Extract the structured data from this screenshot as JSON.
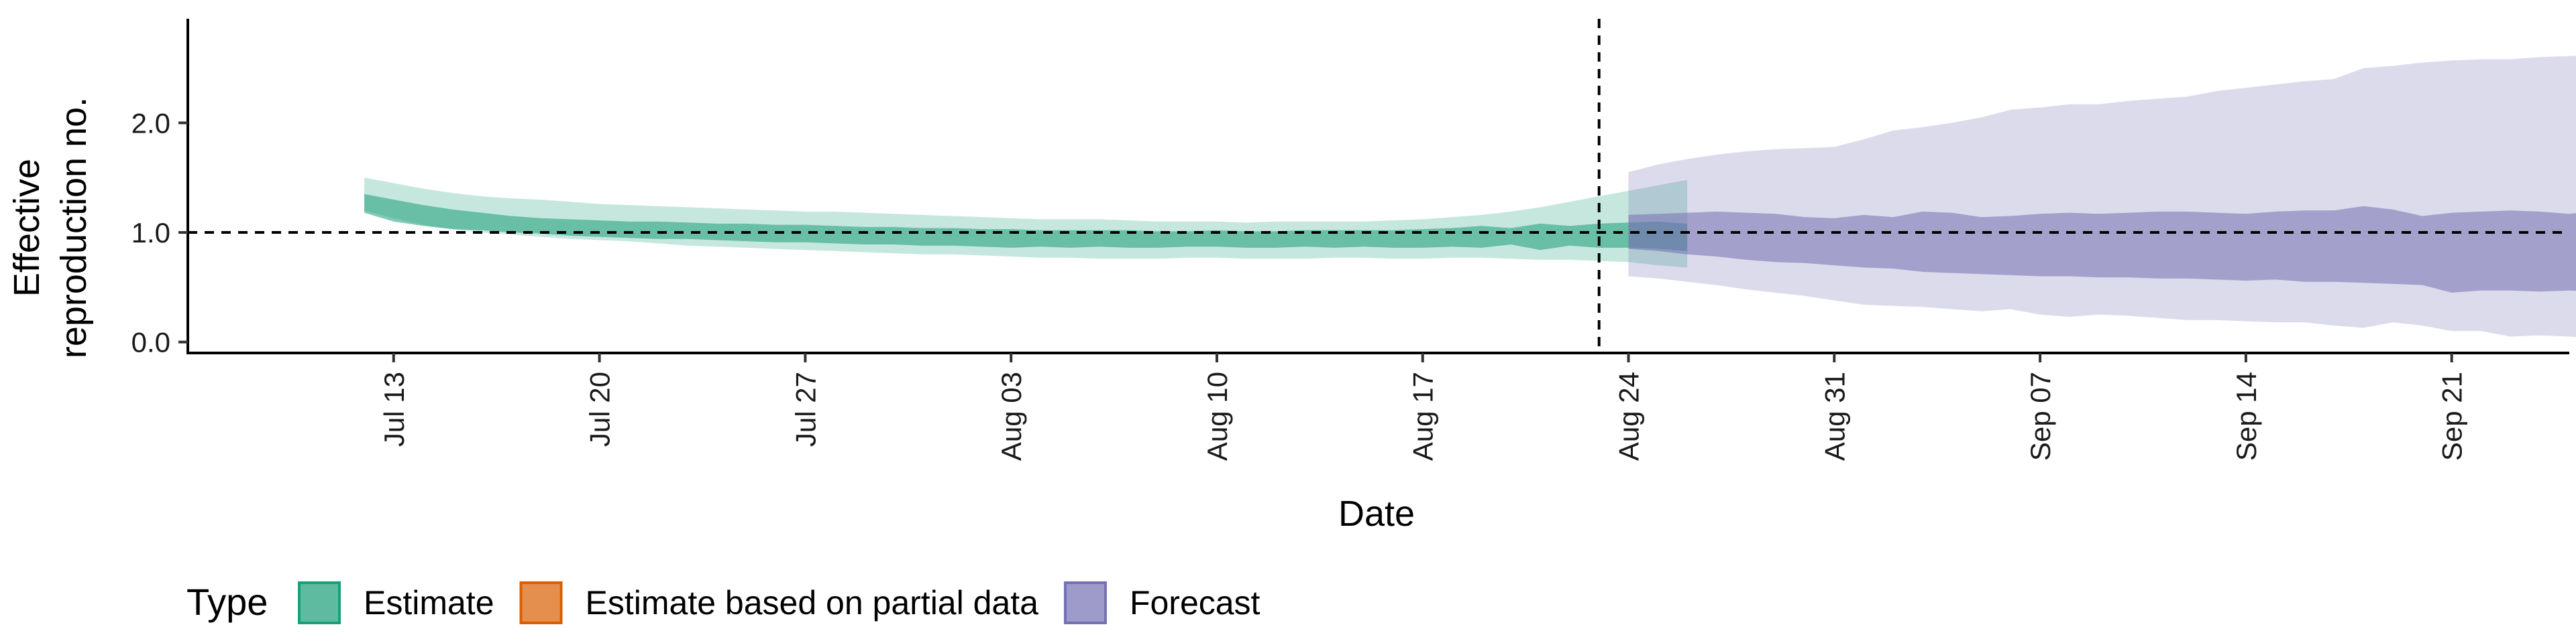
{
  "chart_data": {
    "type": "area",
    "xlabel": "Date",
    "ylabel_lines": [
      "Effective",
      "reproduction no."
    ],
    "ylim": [
      -0.1,
      2.95
    ],
    "yticks": [
      0.0,
      1.0,
      2.0
    ],
    "ytick_labels": [
      "0.0",
      "1.0",
      "2.0"
    ],
    "xlim": [
      "2020-07-06",
      "2020-09-25"
    ],
    "xticks": [
      "2020-07-13",
      "2020-07-20",
      "2020-07-27",
      "2020-08-03",
      "2020-08-10",
      "2020-08-17",
      "2020-08-24",
      "2020-08-31",
      "2020-09-07",
      "2020-09-14",
      "2020-09-21"
    ],
    "xtick_labels": [
      "Jul 13",
      "Jul 20",
      "Jul 27",
      "Aug 03",
      "Aug 10",
      "Aug 17",
      "Aug 24",
      "Aug 31",
      "Sep 07",
      "Sep 14",
      "Sep 21"
    ],
    "reference_line_y": 1.0,
    "forecast_start_line": "2020-08-23",
    "colors": {
      "Estimate": "#1b9e77",
      "Estimate based on partial data": "#d95f02",
      "Forecast": "#7570b3"
    },
    "legend_title": "Type",
    "legend_placement": "bottom",
    "legend": [
      "Estimate",
      "Estimate based on partial data",
      "Forecast"
    ],
    "series": [
      {
        "name": "Estimate",
        "start_date": "2020-07-12",
        "outer_lower": [
          1.2,
          1.13,
          1.07,
          1.03,
          1.0,
          0.98,
          0.96,
          0.94,
          0.93,
          0.92,
          0.9,
          0.88,
          0.87,
          0.86,
          0.85,
          0.84,
          0.83,
          0.82,
          0.81,
          0.8,
          0.8,
          0.79,
          0.78,
          0.77,
          0.77,
          0.76,
          0.76,
          0.76,
          0.77,
          0.77,
          0.76,
          0.76,
          0.76,
          0.77,
          0.77,
          0.76,
          0.76,
          0.77,
          0.77,
          0.76,
          0.75,
          0.75,
          0.74,
          0.73,
          0.7,
          0.68
        ],
        "outer_upper": [
          1.5,
          1.45,
          1.4,
          1.36,
          1.33,
          1.31,
          1.3,
          1.28,
          1.26,
          1.25,
          1.24,
          1.23,
          1.22,
          1.21,
          1.2,
          1.19,
          1.19,
          1.18,
          1.17,
          1.16,
          1.15,
          1.14,
          1.13,
          1.12,
          1.12,
          1.12,
          1.11,
          1.1,
          1.1,
          1.1,
          1.09,
          1.1,
          1.1,
          1.1,
          1.1,
          1.11,
          1.12,
          1.14,
          1.16,
          1.19,
          1.23,
          1.28,
          1.33,
          1.38,
          1.43,
          1.48
        ],
        "inner_lower": [
          1.18,
          1.1,
          1.06,
          1.03,
          1.02,
          1.0,
          0.99,
          0.97,
          0.96,
          0.95,
          0.94,
          0.94,
          0.93,
          0.92,
          0.91,
          0.91,
          0.9,
          0.89,
          0.89,
          0.88,
          0.88,
          0.87,
          0.86,
          0.87,
          0.86,
          0.87,
          0.86,
          0.86,
          0.87,
          0.87,
          0.86,
          0.86,
          0.87,
          0.86,
          0.87,
          0.86,
          0.86,
          0.87,
          0.86,
          0.89,
          0.84,
          0.88,
          0.86,
          0.86,
          0.85,
          0.83
        ],
        "inner_upper": [
          1.35,
          1.3,
          1.25,
          1.21,
          1.18,
          1.15,
          1.13,
          1.12,
          1.11,
          1.1,
          1.1,
          1.09,
          1.08,
          1.08,
          1.07,
          1.07,
          1.06,
          1.05,
          1.05,
          1.04,
          1.04,
          1.03,
          1.03,
          1.02,
          1.02,
          1.02,
          1.02,
          1.01,
          1.01,
          1.02,
          1.01,
          1.01,
          1.02,
          1.02,
          1.02,
          1.02,
          1.03,
          1.04,
          1.06,
          1.04,
          1.08,
          1.06,
          1.08,
          1.09,
          1.1,
          1.08
        ]
      },
      {
        "name": "Forecast",
        "start_date": "2020-08-24",
        "outer_lower": [
          0.6,
          0.58,
          0.55,
          0.52,
          0.48,
          0.45,
          0.42,
          0.38,
          0.34,
          0.33,
          0.32,
          0.3,
          0.28,
          0.3,
          0.25,
          0.23,
          0.25,
          0.24,
          0.22,
          0.2,
          0.2,
          0.19,
          0.18,
          0.18,
          0.15,
          0.13,
          0.18,
          0.15,
          0.1,
          0.1,
          0.05,
          0.06,
          0.05,
          0.03,
          0.06,
          0.02,
          0.05,
          0.03,
          0.06,
          0.05,
          0.03,
          0.02
        ],
        "outer_upper": [
          1.55,
          1.62,
          1.67,
          1.71,
          1.74,
          1.76,
          1.77,
          1.78,
          1.85,
          1.93,
          1.96,
          2.0,
          2.05,
          2.12,
          2.14,
          2.17,
          2.17,
          2.2,
          2.22,
          2.24,
          2.29,
          2.32,
          2.35,
          2.38,
          2.4,
          2.5,
          2.52,
          2.55,
          2.57,
          2.58,
          2.58,
          2.6,
          2.61,
          2.62,
          2.68,
          2.69,
          2.69,
          2.71,
          2.75,
          2.79,
          2.78,
          2.76
        ],
        "inner_lower": [
          0.85,
          0.83,
          0.8,
          0.78,
          0.75,
          0.73,
          0.72,
          0.7,
          0.68,
          0.67,
          0.64,
          0.63,
          0.62,
          0.61,
          0.6,
          0.6,
          0.59,
          0.59,
          0.58,
          0.58,
          0.57,
          0.56,
          0.57,
          0.55,
          0.55,
          0.54,
          0.53,
          0.52,
          0.45,
          0.47,
          0.47,
          0.46,
          0.47,
          0.46,
          0.46,
          0.45,
          0.44,
          0.44,
          0.45,
          0.44,
          0.43,
          0.42
        ],
        "inner_upper": [
          1.16,
          1.17,
          1.18,
          1.19,
          1.18,
          1.17,
          1.14,
          1.13,
          1.16,
          1.14,
          1.19,
          1.18,
          1.14,
          1.15,
          1.17,
          1.18,
          1.17,
          1.18,
          1.19,
          1.19,
          1.18,
          1.17,
          1.19,
          1.2,
          1.2,
          1.24,
          1.21,
          1.15,
          1.18,
          1.19,
          1.2,
          1.19,
          1.17,
          1.2,
          1.18,
          1.19,
          1.18,
          1.2,
          1.19,
          1.2,
          1.18,
          1.18
        ]
      }
    ]
  }
}
